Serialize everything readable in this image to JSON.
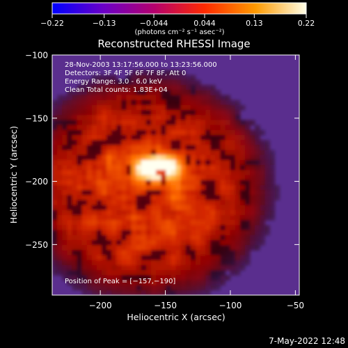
{
  "chart_data": {
    "type": "heatmap",
    "title": "Reconstructed RHESSI Image",
    "xlabel": "Heliocentric X (arcsec)",
    "ylabel": "Heliocentric Y (arcsec)",
    "xlim": [
      -237,
      -47
    ],
    "ylim": [
      -290,
      -100
    ],
    "x_ticks": [
      -200,
      -150,
      -100,
      -50
    ],
    "x_tick_labels": [
      "−200",
      "−150",
      "−100",
      "−50"
    ],
    "y_ticks": [
      -100,
      -150,
      -200,
      -250
    ],
    "y_tick_labels": [
      "−100",
      "−150",
      "−200",
      "−250"
    ],
    "colorbar": {
      "range": [
        -0.22,
        0.22
      ],
      "ticks": [
        -0.22,
        -0.13,
        -0.044,
        0.044,
        0.13,
        0.22
      ],
      "tick_labels": [
        "−0.22",
        "−0.13",
        "−0.044",
        "0.044",
        "0.13",
        "0.22"
      ],
      "label": "(photons cm⁻² s⁻¹ asec⁻²)",
      "colors": [
        "#0000ff",
        "#6a00c8",
        "#b4006e",
        "#ff2a00",
        "#ff9a00",
        "#ffffe8"
      ]
    },
    "annotations": [
      "28-Nov-2003 13:17:56.000 to 13:23:56.000",
      "Detectors: 3F 4F 5F 6F 7F 8F, Att 0",
      "Energy Range: 3.0 - 6.0 keV",
      "Clean    Total counts: 1.83E+04"
    ],
    "peak_label": "Position of Peak = [−157,−190]",
    "peak": [
      -157,
      -190
    ],
    "background_color": "#5a2e8e",
    "date_stamp": "7-May-2022 12:48"
  }
}
